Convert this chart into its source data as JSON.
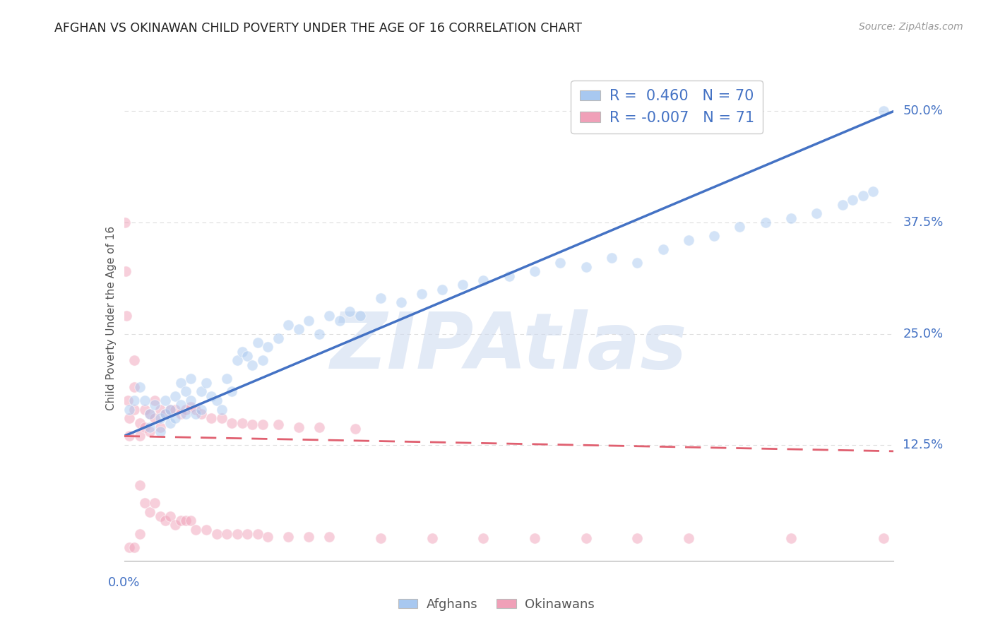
{
  "title": "AFGHAN VS OKINAWAN CHILD POVERTY UNDER THE AGE OF 16 CORRELATION CHART",
  "source": "Source: ZipAtlas.com",
  "ylabel": "Child Poverty Under the Age of 16",
  "ytick_labels": [
    "12.5%",
    "25.0%",
    "37.5%",
    "50.0%"
  ],
  "ytick_values": [
    0.125,
    0.25,
    0.375,
    0.5
  ],
  "xlim": [
    0,
    0.15
  ],
  "ylim": [
    -0.005,
    0.54
  ],
  "legend_line1": "R =  0.460   N = 70",
  "legend_line2": "R = -0.007   N = 71",
  "afghan_color": "#A8C8F0",
  "okinawan_color": "#F0A0B8",
  "afghan_line_color": "#4472C4",
  "okinawan_line_color": "#E06070",
  "watermark_text": "ZIPAtlas",
  "watermark_color": "#D0DCF0",
  "background_color": "#FFFFFF",
  "axis_label_color": "#4472C4",
  "legend_text_color": "#4472C4",
  "afghan_scatter_x": [
    0.001,
    0.002,
    0.003,
    0.004,
    0.005,
    0.005,
    0.006,
    0.007,
    0.007,
    0.008,
    0.008,
    0.009,
    0.009,
    0.01,
    0.01,
    0.011,
    0.011,
    0.012,
    0.012,
    0.013,
    0.013,
    0.014,
    0.015,
    0.015,
    0.016,
    0.017,
    0.018,
    0.019,
    0.02,
    0.021,
    0.022,
    0.023,
    0.024,
    0.025,
    0.026,
    0.027,
    0.028,
    0.03,
    0.032,
    0.034,
    0.036,
    0.038,
    0.04,
    0.042,
    0.044,
    0.046,
    0.05,
    0.054,
    0.058,
    0.062,
    0.066,
    0.07,
    0.075,
    0.08,
    0.085,
    0.09,
    0.095,
    0.1,
    0.105,
    0.11,
    0.115,
    0.12,
    0.125,
    0.13,
    0.135,
    0.14,
    0.142,
    0.144,
    0.146,
    0.148
  ],
  "afghan_scatter_y": [
    0.165,
    0.175,
    0.19,
    0.175,
    0.16,
    0.145,
    0.17,
    0.155,
    0.14,
    0.175,
    0.16,
    0.165,
    0.15,
    0.18,
    0.155,
    0.195,
    0.17,
    0.185,
    0.16,
    0.2,
    0.175,
    0.16,
    0.185,
    0.165,
    0.195,
    0.18,
    0.175,
    0.165,
    0.2,
    0.185,
    0.22,
    0.23,
    0.225,
    0.215,
    0.24,
    0.22,
    0.235,
    0.245,
    0.26,
    0.255,
    0.265,
    0.25,
    0.27,
    0.265,
    0.275,
    0.27,
    0.29,
    0.285,
    0.295,
    0.3,
    0.305,
    0.31,
    0.315,
    0.32,
    0.33,
    0.325,
    0.335,
    0.33,
    0.345,
    0.355,
    0.36,
    0.37,
    0.375,
    0.38,
    0.385,
    0.395,
    0.4,
    0.405,
    0.41,
    0.5
  ],
  "okinawan_scatter_x": [
    0.0002,
    0.0003,
    0.0005,
    0.0007,
    0.001,
    0.001,
    0.001,
    0.002,
    0.002,
    0.002,
    0.002,
    0.003,
    0.003,
    0.003,
    0.003,
    0.004,
    0.004,
    0.004,
    0.005,
    0.005,
    0.005,
    0.006,
    0.006,
    0.006,
    0.007,
    0.007,
    0.007,
    0.008,
    0.008,
    0.009,
    0.009,
    0.01,
    0.01,
    0.011,
    0.011,
    0.012,
    0.012,
    0.013,
    0.013,
    0.014,
    0.014,
    0.015,
    0.016,
    0.017,
    0.018,
    0.019,
    0.02,
    0.021,
    0.022,
    0.023,
    0.024,
    0.025,
    0.026,
    0.027,
    0.028,
    0.03,
    0.032,
    0.034,
    0.036,
    0.038,
    0.04,
    0.045,
    0.05,
    0.06,
    0.07,
    0.08,
    0.09,
    0.1,
    0.11,
    0.13,
    0.148
  ],
  "okinawan_scatter_y": [
    0.375,
    0.32,
    0.27,
    0.175,
    0.155,
    0.135,
    0.01,
    0.22,
    0.19,
    0.165,
    0.01,
    0.15,
    0.135,
    0.08,
    0.025,
    0.165,
    0.145,
    0.06,
    0.16,
    0.14,
    0.05,
    0.175,
    0.155,
    0.06,
    0.165,
    0.145,
    0.045,
    0.16,
    0.04,
    0.165,
    0.045,
    0.165,
    0.035,
    0.16,
    0.04,
    0.165,
    0.04,
    0.168,
    0.04,
    0.165,
    0.03,
    0.16,
    0.03,
    0.155,
    0.025,
    0.155,
    0.025,
    0.15,
    0.025,
    0.15,
    0.025,
    0.148,
    0.025,
    0.148,
    0.022,
    0.148,
    0.022,
    0.145,
    0.022,
    0.145,
    0.022,
    0.143,
    0.02,
    0.02,
    0.02,
    0.02,
    0.02,
    0.02,
    0.02,
    0.02,
    0.02
  ],
  "grid_color": "#DDDDDD",
  "dot_size": 120,
  "dot_alpha": 0.5,
  "dot_linewidth": 0.8,
  "dot_edgecolor": "#FFFFFF",
  "afghan_line_x0": 0.0,
  "afghan_line_y0": 0.135,
  "afghan_line_x1": 0.15,
  "afghan_line_y1": 0.5,
  "okinawan_line_x0": 0.0,
  "okinawan_line_y0": 0.135,
  "okinawan_line_x1": 0.15,
  "okinawan_line_y1": 0.118
}
